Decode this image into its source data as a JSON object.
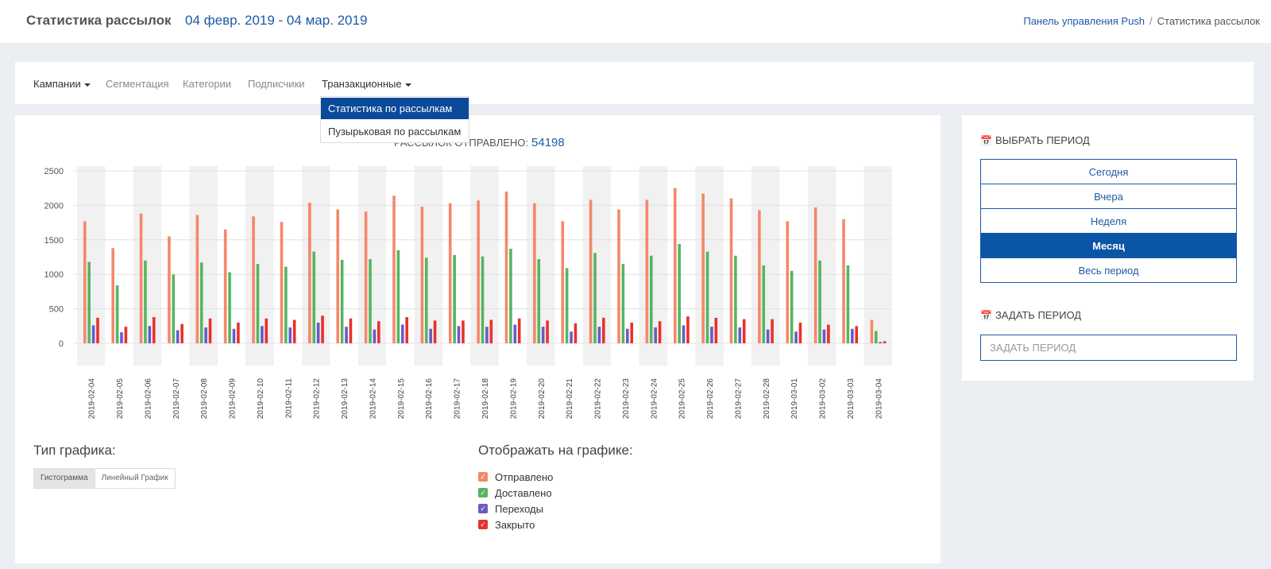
{
  "header": {
    "title": "Статистика рассылок",
    "date_range": "04 февр. 2019 - 04 мар. 2019",
    "breadcrumb": {
      "link": "Панель управления Push",
      "separator": "/",
      "current": "Статистика рассылок"
    }
  },
  "nav": {
    "campaigns": "Кампании",
    "segmentation": "Сегментация",
    "categories": "Категории",
    "subscribers": "Подписчики",
    "transactional": "Транзакционные"
  },
  "dropdown": {
    "items": [
      "Статистика по рассылкам",
      "Пузырьковая по рассылкам"
    ]
  },
  "summary": {
    "label": "РАССЫЛОК ОТПРАВЛЕНО:",
    "value": "54198"
  },
  "chart_type": {
    "title": "Тип графика:",
    "histogram": "Гистограмма",
    "line": "Линейный График"
  },
  "display": {
    "title": "Отображать на графике:",
    "items": [
      {
        "label": "Отправлено",
        "color": "#f4886a"
      },
      {
        "label": "Доставлено",
        "color": "#55b560"
      },
      {
        "label": "Переходы",
        "color": "#6a5ac4"
      },
      {
        "label": "Закрыто",
        "color": "#e8312b"
      }
    ]
  },
  "right": {
    "choose_title": "ВЫБРАТЬ ПЕРИОД",
    "periods": [
      "Сегодня",
      "Вчера",
      "Неделя",
      "Месяц",
      "Весь период"
    ],
    "active_period": "Месяц",
    "set_title": "ЗАДАТЬ ПЕРИОД",
    "set_placeholder": "ЗАДАТЬ ПЕРИОД"
  },
  "chart_data": {
    "type": "bar",
    "categories": [
      "2019-02-04",
      "2019-02-05",
      "2019-02-06",
      "2019-02-07",
      "2019-02-08",
      "2019-02-09",
      "2019-02-10",
      "2019-02-11",
      "2019-02-12",
      "2019-02-13",
      "2019-02-14",
      "2019-02-15",
      "2019-02-16",
      "2019-02-17",
      "2019-02-18",
      "2019-02-19",
      "2019-02-20",
      "2019-02-21",
      "2019-02-22",
      "2019-02-23",
      "2019-02-24",
      "2019-02-25",
      "2019-02-26",
      "2019-02-27",
      "2019-02-28",
      "2019-03-01",
      "2019-03-02",
      "2019-03-03",
      "2019-03-04"
    ],
    "series": [
      {
        "name": "Отправлено",
        "color": "#f4886a",
        "values": [
          1770,
          1380,
          1880,
          1550,
          1860,
          1650,
          1840,
          1760,
          2040,
          1940,
          1910,
          2140,
          1980,
          2030,
          2070,
          2200,
          2030,
          1770,
          2080,
          1940,
          2080,
          2250,
          2170,
          2100,
          1930,
          1770,
          1970,
          1800,
          340
        ]
      },
      {
        "name": "Доставлено",
        "color": "#55b560",
        "values": [
          1180,
          840,
          1200,
          1000,
          1170,
          1030,
          1150,
          1110,
          1330,
          1210,
          1220,
          1350,
          1240,
          1280,
          1260,
          1370,
          1220,
          1090,
          1310,
          1150,
          1270,
          1440,
          1330,
          1270,
          1130,
          1050,
          1200,
          1130,
          180
        ]
      },
      {
        "name": "Переходы",
        "color": "#6a5ac4",
        "values": [
          260,
          160,
          250,
          190,
          230,
          210,
          250,
          230,
          300,
          240,
          200,
          270,
          210,
          250,
          240,
          270,
          240,
          170,
          240,
          210,
          230,
          260,
          240,
          230,
          200,
          170,
          200,
          210,
          20
        ]
      },
      {
        "name": "Закрыто",
        "color": "#e8312b",
        "values": [
          370,
          240,
          380,
          280,
          360,
          300,
          360,
          340,
          400,
          360,
          320,
          380,
          330,
          330,
          340,
          360,
          330,
          290,
          370,
          300,
          320,
          390,
          370,
          350,
          350,
          300,
          270,
          250,
          30
        ]
      }
    ],
    "ylim": [
      0,
      2500
    ],
    "yticks": [
      0,
      500,
      1000,
      1500,
      2000,
      2500
    ],
    "grid": true
  }
}
